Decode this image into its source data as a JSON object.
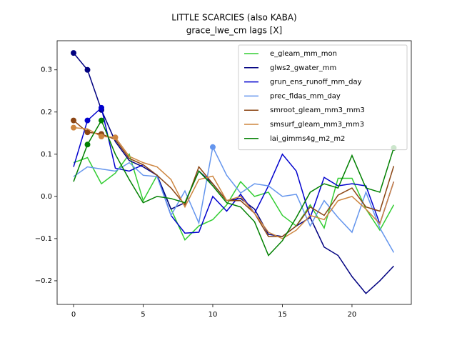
{
  "chart_data": {
    "type": "line",
    "title": "LITTLE SCARCIES (also KABA)",
    "subtitle": "grace_lwe_cm lags [X]",
    "x": [
      0,
      1,
      2,
      3,
      4,
      5,
      6,
      7,
      8,
      9,
      10,
      11,
      12,
      13,
      14,
      15,
      16,
      17,
      18,
      19,
      20,
      21,
      22,
      23
    ],
    "xlim": [
      -1.18,
      24.26
    ],
    "xticks": [
      0,
      5,
      10,
      15,
      20
    ],
    "ylim": [
      -0.256,
      0.369
    ],
    "yticks": [
      {
        "value": -0.2,
        "label": "−0.2"
      },
      {
        "value": -0.1,
        "label": "−0.1"
      },
      {
        "value": 0,
        "label": "0.0"
      },
      0.1,
      0.2,
      0.3
    ],
    "legend": "upper right",
    "series": [
      {
        "name": "e_gleam_mm_mon",
        "color": "#32cd32",
        "values": [
          0.08,
          0.092,
          0.03,
          0.055,
          0.1,
          -0.01,
          0.05,
          -0.03,
          -0.103,
          -0.07,
          -0.055,
          -0.02,
          0.035,
          0.0,
          0.01,
          -0.045,
          -0.07,
          -0.02,
          -0.075,
          0.043,
          0.043,
          -0.03,
          -0.08,
          -0.02
        ],
        "markers": []
      },
      {
        "name": "glws2_gwater_mm",
        "color": "#000080",
        "values": [
          0.34,
          0.3,
          0.205,
          0.13,
          0.085,
          0.07,
          0.05,
          -0.03,
          -0.015,
          0.06,
          0.03,
          -0.01,
          -0.005,
          -0.03,
          -0.09,
          -0.095,
          -0.07,
          -0.05,
          -0.12,
          -0.14,
          -0.19,
          -0.23,
          -0.2,
          -0.165
        ],
        "markers": [
          0,
          1,
          2
        ]
      },
      {
        "name": "grun_ens_runoff_mm_day",
        "color": "#0000cd",
        "values": [
          0.07,
          0.18,
          0.21,
          0.067,
          0.06,
          0.075,
          0.05,
          -0.045,
          -0.087,
          -0.085,
          0.0,
          -0.035,
          0.005,
          -0.04,
          0.025,
          0.1,
          0.06,
          -0.05,
          0.045,
          0.025,
          0.03,
          0.025,
          -0.065,
          0.035
        ],
        "markers": [
          1,
          2
        ]
      },
      {
        "name": "prec_fldas_mm_day",
        "color": "#6495ed",
        "values": [
          0.047,
          0.07,
          0.065,
          0.06,
          0.08,
          0.05,
          0.047,
          -0.045,
          0.013,
          -0.063,
          0.117,
          0.05,
          0.008,
          0.03,
          0.025,
          0.0,
          0.005,
          -0.07,
          -0.01,
          -0.05,
          -0.085,
          0.01,
          -0.075,
          -0.133
        ],
        "markers": [
          10
        ]
      },
      {
        "name": "smroot_gleam_mm3_mm3",
        "color": "#8b4513",
        "values": [
          0.18,
          0.152,
          0.148,
          0.135,
          0.09,
          0.075,
          0.05,
          0.02,
          -0.02,
          0.07,
          0.03,
          -0.01,
          -0.01,
          -0.04,
          -0.095,
          -0.095,
          -0.07,
          -0.025,
          -0.045,
          0.003,
          0.02,
          -0.025,
          -0.035,
          0.072
        ],
        "markers": [
          0,
          1,
          2
        ]
      },
      {
        "name": "smsurf_gleam_mm3_mm3",
        "color": "#cd853f",
        "values": [
          0.163,
          0.16,
          0.142,
          0.14,
          0.095,
          0.08,
          0.07,
          0.04,
          -0.025,
          0.04,
          0.048,
          -0.01,
          0.0,
          -0.04,
          -0.085,
          -0.1,
          -0.08,
          -0.045,
          -0.055,
          -0.01,
          0.0,
          -0.03,
          -0.065,
          0.035
        ],
        "markers": [
          0,
          2,
          3
        ]
      },
      {
        "name": "lai_gimms4g_m2_m2",
        "color": "#008000",
        "values": [
          0.035,
          0.123,
          0.18,
          0.1,
          0.04,
          -0.015,
          0.0,
          -0.005,
          -0.015,
          0.06,
          0.025,
          -0.015,
          -0.025,
          -0.06,
          -0.14,
          -0.105,
          -0.05,
          0.01,
          0.03,
          0.02,
          0.097,
          0.02,
          0.01,
          0.115
        ],
        "markers": [
          1,
          2,
          23
        ]
      }
    ]
  }
}
